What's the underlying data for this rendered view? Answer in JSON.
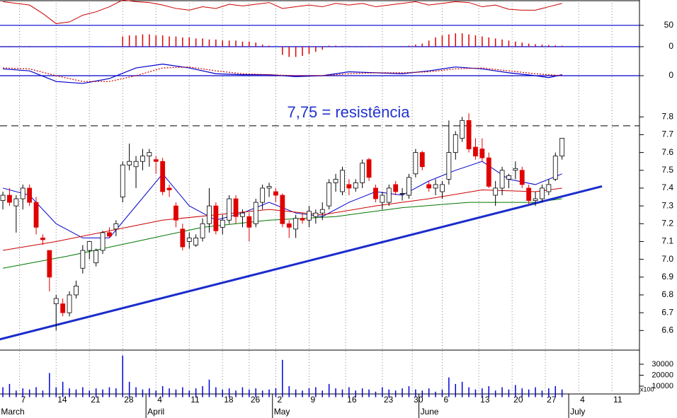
{
  "chart_data": {
    "type": "candlestick",
    "annotation": "7,75 = resistência",
    "xlim": [
      -0.43,
      95.63
    ],
    "date_ticks": [
      {
        "value": 2.5,
        "label": "7"
      },
      {
        "value": 8,
        "label": "14"
      },
      {
        "value": 13,
        "label": "21"
      },
      {
        "value": 18,
        "label": "28"
      },
      {
        "value": 23,
        "label": "4"
      },
      {
        "value": 28,
        "label": "11"
      },
      {
        "value": 33,
        "label": "18"
      },
      {
        "value": 37,
        "label": "26"
      },
      {
        "value": 41,
        "label": "2"
      },
      {
        "value": 46,
        "label": "9"
      },
      {
        "value": 51.5,
        "label": "16"
      },
      {
        "value": 57,
        "label": "23"
      },
      {
        "value": 61.5,
        "label": "30"
      },
      {
        "value": 66,
        "label": "6"
      },
      {
        "value": 71.5,
        "label": "13"
      },
      {
        "value": 76.5,
        "label": "20"
      },
      {
        "value": 81.5,
        "label": "27"
      },
      {
        "value": 86.5,
        "label": "4"
      },
      {
        "value": 91.5,
        "label": "11"
      }
    ],
    "month_ticks": [
      {
        "value": -0.5,
        "label": "March"
      },
      {
        "value": 21.5,
        "label": "April"
      },
      {
        "value": 40.5,
        "label": "May"
      },
      {
        "value": 62.5,
        "label": "June"
      },
      {
        "value": 85,
        "label": "July"
      }
    ],
    "up_color": "#ffffff",
    "down_color": "#e00000",
    "ohlc": [
      [
        7.33,
        7.38,
        7.28,
        7.36
      ],
      [
        7.36,
        7.4,
        7.3,
        7.32
      ],
      [
        7.3,
        7.36,
        7.15,
        7.34
      ],
      [
        7.34,
        7.42,
        7.28,
        7.4
      ],
      [
        7.4,
        7.42,
        7.3,
        7.32
      ],
      [
        7.32,
        7.35,
        7.14,
        7.18
      ],
      [
        7.12,
        7.14,
        7.08,
        7.11
      ],
      [
        7.05,
        7.05,
        6.82,
        6.9
      ],
      [
        6.75,
        6.8,
        6.6,
        6.78
      ],
      [
        6.75,
        6.78,
        6.68,
        6.7
      ],
      [
        6.7,
        6.82,
        6.68,
        6.8
      ],
      [
        6.8,
        6.88,
        6.78,
        6.85
      ],
      [
        6.95,
        7.08,
        6.92,
        7.05
      ],
      [
        7.05,
        7.1,
        7.0,
        7.1
      ],
      [
        6.98,
        7.06,
        6.96,
        7.05
      ],
      [
        7.05,
        7.16,
        7.03,
        7.15
      ],
      [
        7.15,
        7.18,
        7.12,
        7.13
      ],
      [
        7.17,
        7.22,
        7.13,
        7.2
      ],
      [
        7.35,
        7.55,
        7.32,
        7.53
      ],
      [
        7.53,
        7.65,
        7.5,
        7.55
      ],
      [
        7.52,
        7.58,
        7.4,
        7.55
      ],
      [
        7.55,
        7.62,
        7.5,
        7.58
      ],
      [
        7.58,
        7.62,
        7.52,
        7.6
      ],
      [
        7.56,
        7.58,
        7.48,
        7.55
      ],
      [
        7.55,
        7.57,
        7.36,
        7.38
      ],
      [
        7.4,
        7.42,
        7.35,
        7.39
      ],
      [
        7.3,
        7.32,
        7.18,
        7.22
      ],
      [
        7.17,
        7.2,
        7.05,
        7.07
      ],
      [
        7.1,
        7.15,
        7.06,
        7.12
      ],
      [
        7.08,
        7.14,
        7.07,
        7.12
      ],
      [
        7.12,
        7.23,
        7.1,
        7.2
      ],
      [
        7.2,
        7.4,
        7.15,
        7.3
      ],
      [
        7.3,
        7.32,
        7.14,
        7.16
      ],
      [
        7.18,
        7.25,
        7.14,
        7.22
      ],
      [
        7.22,
        7.36,
        7.2,
        7.34
      ],
      [
        7.34,
        7.36,
        7.2,
        7.24
      ],
      [
        7.24,
        7.28,
        7.18,
        7.26
      ],
      [
        7.24,
        7.26,
        7.1,
        7.18
      ],
      [
        7.2,
        7.34,
        7.18,
        7.32
      ],
      [
        7.32,
        7.42,
        7.28,
        7.4
      ],
      [
        7.4,
        7.43,
        7.35,
        7.41
      ],
      [
        7.38,
        7.4,
        7.32,
        7.36
      ],
      [
        7.36,
        7.37,
        7.18,
        7.2
      ],
      [
        7.2,
        7.22,
        7.12,
        7.18
      ],
      [
        7.17,
        7.25,
        7.12,
        7.23
      ],
      [
        7.23,
        7.26,
        7.2,
        7.22
      ],
      [
        7.22,
        7.3,
        7.18,
        7.27
      ],
      [
        7.24,
        7.28,
        7.2,
        7.26
      ],
      [
        7.26,
        7.32,
        7.22,
        7.28
      ],
      [
        7.3,
        7.45,
        7.28,
        7.43
      ],
      [
        7.43,
        7.48,
        7.38,
        7.45
      ],
      [
        7.38,
        7.52,
        7.36,
        7.5
      ],
      [
        7.42,
        7.45,
        7.36,
        7.4
      ],
      [
        7.4,
        7.45,
        7.38,
        7.43
      ],
      [
        7.43,
        7.56,
        7.4,
        7.54
      ],
      [
        7.56,
        7.57,
        7.44,
        7.46
      ],
      [
        7.4,
        7.42,
        7.32,
        7.34
      ],
      [
        7.32,
        7.38,
        7.28,
        7.36
      ],
      [
        7.32,
        7.42,
        7.3,
        7.4
      ],
      [
        7.42,
        7.44,
        7.36,
        7.38
      ],
      [
        7.37,
        7.4,
        7.33,
        7.37
      ],
      [
        7.36,
        7.48,
        7.34,
        7.46
      ],
      [
        7.48,
        7.62,
        7.46,
        7.6
      ],
      [
        7.6,
        7.61,
        7.5,
        7.52
      ],
      [
        7.42,
        7.44,
        7.38,
        7.4
      ],
      [
        7.4,
        7.45,
        7.36,
        7.42
      ],
      [
        7.38,
        7.44,
        7.34,
        7.42
      ],
      [
        7.45,
        7.78,
        7.42,
        7.6
      ],
      [
        7.6,
        7.72,
        7.56,
        7.7
      ],
      [
        7.68,
        7.8,
        7.66,
        7.78
      ],
      [
        7.78,
        7.82,
        7.6,
        7.62
      ],
      [
        7.63,
        7.68,
        7.56,
        7.58
      ],
      [
        7.62,
        7.68,
        7.55,
        7.57
      ],
      [
        7.57,
        7.6,
        7.4,
        7.41
      ],
      [
        7.36,
        7.44,
        7.3,
        7.4
      ],
      [
        7.4,
        7.52,
        7.36,
        7.5
      ],
      [
        7.45,
        7.48,
        7.4,
        7.47
      ],
      [
        7.5,
        7.55,
        7.45,
        7.51
      ],
      [
        7.5,
        7.52,
        7.4,
        7.42
      ],
      [
        7.4,
        7.42,
        7.31,
        7.33
      ],
      [
        7.33,
        7.38,
        7.3,
        7.34
      ],
      [
        7.34,
        7.42,
        7.32,
        7.4
      ],
      [
        7.38,
        7.45,
        7.36,
        7.42
      ],
      [
        7.45,
        7.6,
        7.44,
        7.58
      ],
      [
        7.58,
        7.68,
        7.56,
        7.68
      ]
    ],
    "price": {
      "ylim": [
        6.49,
        7.96
      ],
      "yticks": [
        6.6,
        6.7,
        6.8,
        6.9,
        {
          "value": 7,
          "label": "7.0"
        },
        7.1,
        7.2,
        7.3,
        7.4,
        7.5,
        7.6,
        7.7,
        7.8
      ],
      "series": [
        {
          "color": "#0000cc",
          "x": [
            0,
            4,
            8,
            12,
            16,
            20,
            24,
            28,
            32,
            36,
            40,
            44,
            48,
            52,
            56,
            60,
            64,
            68,
            72,
            76,
            80,
            84
          ],
          "values": [
            7.4,
            7.36,
            7.2,
            7.12,
            7.12,
            7.3,
            7.48,
            7.3,
            7.22,
            7.26,
            7.32,
            7.26,
            7.24,
            7.32,
            7.38,
            7.36,
            7.44,
            7.5,
            7.55,
            7.45,
            7.42,
            7.48
          ]
        },
        {
          "color": "#cc0000",
          "x": [
            0,
            8,
            16,
            24,
            32,
            40,
            48,
            56,
            64,
            72,
            80,
            84
          ],
          "values": [
            7.05,
            7.1,
            7.16,
            7.22,
            7.25,
            7.28,
            7.25,
            7.3,
            7.34,
            7.39,
            7.38,
            7.4
          ]
        },
        {
          "color": "#007700",
          "x": [
            0,
            10,
            20,
            30,
            40,
            50,
            60,
            70,
            80,
            84
          ],
          "values": [
            6.95,
            7.02,
            7.1,
            7.18,
            7.22,
            7.24,
            7.29,
            7.32,
            7.32,
            7.34
          ]
        }
      ]
    },
    "resistance": 7.75,
    "trendline": {
      "color": "#1a2ccc",
      "x": [
        -0.5,
        90
      ],
      "values": [
        6.55,
        7.41
      ]
    },
    "volume": {
      "ylim": [
        0,
        42900
      ],
      "yticks": [
        30000,
        20000,
        10000
      ],
      "unit_label": "x100",
      "color": "#0000dd",
      "values": [
        9000,
        12000,
        6000,
        8000,
        7000,
        9000,
        6000,
        22000,
        9000,
        14000,
        8000,
        7000,
        9000,
        6000,
        8000,
        7000,
        9000,
        8000,
        38000,
        14000,
        9000,
        7000,
        8000,
        6000,
        10000,
        8000,
        7000,
        9000,
        6000,
        8000,
        10000,
        16000,
        9000,
        7000,
        8000,
        6000,
        9000,
        7000,
        8000,
        6000,
        7000,
        8000,
        34000,
        10000,
        7000,
        6000,
        8000,
        9000,
        6000,
        12000,
        8000,
        7000,
        9000,
        6000,
        8000,
        7000,
        5000,
        9000,
        7000,
        6000,
        8000,
        10000,
        7000,
        6000,
        8000,
        5000,
        7000,
        18000,
        12000,
        14000,
        9000,
        7000,
        8000,
        10000,
        6000,
        9000,
        7000,
        11000,
        8000,
        7000,
        9000,
        6000,
        8000,
        10000,
        7000
      ]
    },
    "rsi": {
      "ylim": [
        49,
        80
      ],
      "yticks": [
        50
      ],
      "color": "#cc0000",
      "x": [
        0,
        2,
        4,
        6,
        8,
        10,
        12,
        14,
        16,
        18,
        20,
        22,
        24,
        26,
        28,
        30,
        32,
        34,
        36,
        38,
        40,
        42,
        44,
        46,
        48,
        50,
        52,
        54,
        56,
        58,
        60,
        62,
        64,
        66,
        68,
        70,
        72,
        74,
        76,
        78,
        80,
        82,
        84
      ],
      "values": [
        78,
        76,
        74,
        64,
        52,
        54,
        62,
        66,
        72,
        80,
        78,
        77,
        74,
        70,
        68,
        72,
        70,
        75,
        73,
        75,
        77,
        70,
        72,
        74,
        72,
        76,
        74,
        76,
        72,
        74,
        76,
        78,
        74,
        76,
        78,
        77,
        72,
        74,
        69,
        68,
        68,
        72,
        76
      ]
    },
    "histogram": {
      "ylim": [
        -1,
        1
      ],
      "yticks": [
        0
      ],
      "color": "#dd0000",
      "values": [
        0.03,
        0.03,
        0.02,
        0.02,
        0.03,
        0.02,
        0.02,
        0,
        0,
        0,
        0,
        0,
        0,
        0,
        0,
        0,
        0.02,
        0.02,
        0.5,
        0.55,
        0.55,
        0.6,
        0.6,
        0.55,
        0.55,
        0.5,
        0.5,
        0.45,
        0.45,
        0.4,
        0.4,
        0.35,
        0.35,
        0.3,
        0.3,
        0.3,
        0.25,
        0.25,
        0.2,
        0.1,
        0.05,
        0,
        -0.4,
        -0.5,
        -0.5,
        -0.45,
        -0.35,
        -0.25,
        -0.15,
        0.05,
        0.05,
        0.04,
        0.04,
        0.03,
        0.03,
        0.03,
        0.02,
        0.02,
        0.02,
        0.02,
        0.03,
        0.05,
        0.1,
        0.15,
        0.3,
        0.45,
        0.55,
        0.6,
        0.65,
        0.65,
        0.6,
        0.55,
        0.5,
        0.45,
        0.4,
        0.35,
        0.3,
        0.25,
        0.2,
        0.15,
        0.12,
        0.1,
        0.08,
        0.06,
        0.05
      ]
    },
    "macd": {
      "ylim": [
        -0.3,
        0.3
      ],
      "yticks": [
        0
      ],
      "series": [
        {
          "color": "#0000cc",
          "dashed": false,
          "x": [
            0,
            4,
            8,
            12,
            16,
            20,
            24,
            28,
            32,
            36,
            40,
            44,
            48,
            52,
            56,
            60,
            64,
            68,
            72,
            76,
            80,
            82,
            84
          ],
          "values": [
            0.07,
            0.05,
            -0.06,
            -0.08,
            -0.03,
            0.08,
            0.12,
            0.08,
            0.02,
            0.01,
            0.01,
            -0.01,
            0,
            0.04,
            0.03,
            0.02,
            0.05,
            0.09,
            0.07,
            0.03,
            0.0,
            -0.02,
            0.01
          ]
        },
        {
          "color": "#cc0000",
          "dashed": true,
          "x": [
            0,
            4,
            8,
            12,
            16,
            20,
            24,
            28,
            32,
            36,
            40,
            44,
            48,
            52,
            56,
            60,
            64,
            68,
            72,
            76,
            80,
            84
          ],
          "values": [
            0.08,
            0.07,
            0.0,
            -0.06,
            -0.06,
            0.0,
            0.08,
            0.09,
            0.05,
            0.02,
            0.01,
            0.0,
            0.0,
            0.02,
            0.03,
            0.03,
            0.04,
            0.07,
            0.08,
            0.05,
            0.02,
            0.0
          ]
        }
      ]
    }
  }
}
